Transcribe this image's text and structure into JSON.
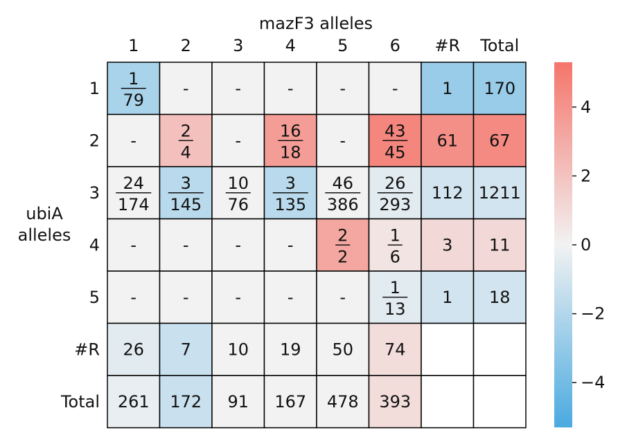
{
  "chart_data": {
    "type": "heatmap",
    "title": "mazF3 alleles",
    "ylabel_lines": [
      "ubiA",
      "alleles"
    ],
    "x_tick_labels": [
      "1",
      "2",
      "3",
      "4",
      "5",
      "6",
      "#R",
      "Total"
    ],
    "y_tick_labels": [
      "1",
      "2",
      "3",
      "4",
      "5",
      "#R",
      "Total"
    ],
    "cells": [
      [
        {
          "num": "1",
          "den": "79",
          "color": -2.3
        },
        {
          "text": "-",
          "color": 0
        },
        {
          "text": "-",
          "color": 0
        },
        {
          "text": "-",
          "color": 0
        },
        {
          "text": "-",
          "color": 0
        },
        {
          "text": "-",
          "color": 0
        },
        {
          "text": "1",
          "color": -2.8
        },
        {
          "text": "170",
          "color": -2.8
        }
      ],
      [
        {
          "text": "-",
          "color": 0
        },
        {
          "num": "2",
          "den": "4",
          "color": 2.1
        },
        {
          "text": "-",
          "color": 0
        },
        {
          "num": "16",
          "den": "18",
          "color": 3.6
        },
        {
          "text": "-",
          "color": 0
        },
        {
          "num": "43",
          "den": "45",
          "color": 4.6
        },
        {
          "text": "61",
          "color": 4.2
        },
        {
          "text": "67",
          "color": 4.4
        }
      ],
      [
        {
          "num": "24",
          "den": "174",
          "color": 0
        },
        {
          "num": "3",
          "den": "145",
          "color": -1.8
        },
        {
          "num": "10",
          "den": "76",
          "color": 0
        },
        {
          "num": "3",
          "den": "135",
          "color": -1.8
        },
        {
          "num": "46",
          "den": "386",
          "color": 0
        },
        {
          "num": "26",
          "den": "293",
          "color": -0.5
        },
        {
          "text": "112",
          "color": -1.0
        },
        {
          "text": "1211",
          "color": -1.0
        }
      ],
      [
        {
          "text": "-",
          "color": 0
        },
        {
          "text": "-",
          "color": 0
        },
        {
          "text": "-",
          "color": 0
        },
        {
          "text": "-",
          "color": 0
        },
        {
          "num": "2",
          "den": "2",
          "color": 3.2
        },
        {
          "num": "1",
          "den": "6",
          "color": 0.6
        },
        {
          "text": "3",
          "color": 1.1
        },
        {
          "text": "11",
          "color": 1.1
        }
      ],
      [
        {
          "text": "-",
          "color": 0
        },
        {
          "text": "-",
          "color": 0
        },
        {
          "text": "-",
          "color": 0
        },
        {
          "text": "-",
          "color": 0
        },
        {
          "text": "-",
          "color": 0
        },
        {
          "num": "1",
          "den": "13",
          "color": -0.5
        },
        {
          "text": "1",
          "color": -1.0
        },
        {
          "text": "18",
          "color": -1.0
        }
      ],
      [
        {
          "text": "26",
          "color": -0.5
        },
        {
          "text": "7",
          "color": -1.3
        },
        {
          "text": "10",
          "color": 0
        },
        {
          "text": "19",
          "color": 0
        },
        {
          "text": "50",
          "color": 0
        },
        {
          "text": "74",
          "color": 0.9
        },
        {
          "text": "",
          "color": null
        },
        {
          "text": "",
          "color": null
        }
      ],
      [
        {
          "text": "261",
          "color": -0.3
        },
        {
          "text": "172",
          "color": -1.3
        },
        {
          "text": "91",
          "color": 0
        },
        {
          "text": "167",
          "color": 0
        },
        {
          "text": "478",
          "color": 0
        },
        {
          "text": "393",
          "color": 0.9
        },
        {
          "text": "",
          "color": null
        },
        {
          "text": "",
          "color": null
        }
      ]
    ],
    "colorbar": {
      "ticks": [
        4,
        2,
        0,
        -2,
        -4
      ],
      "tick_labels": [
        "4",
        "2",
        "0",
        "−2",
        "−4"
      ],
      "range": [
        -5.3,
        5.3
      ]
    },
    "colors": {
      "negative": "#4aaae0",
      "neutral": "#f2f2f2",
      "positive": "#f4756b",
      "empty": "#ffffff",
      "grid": "#000000"
    }
  }
}
